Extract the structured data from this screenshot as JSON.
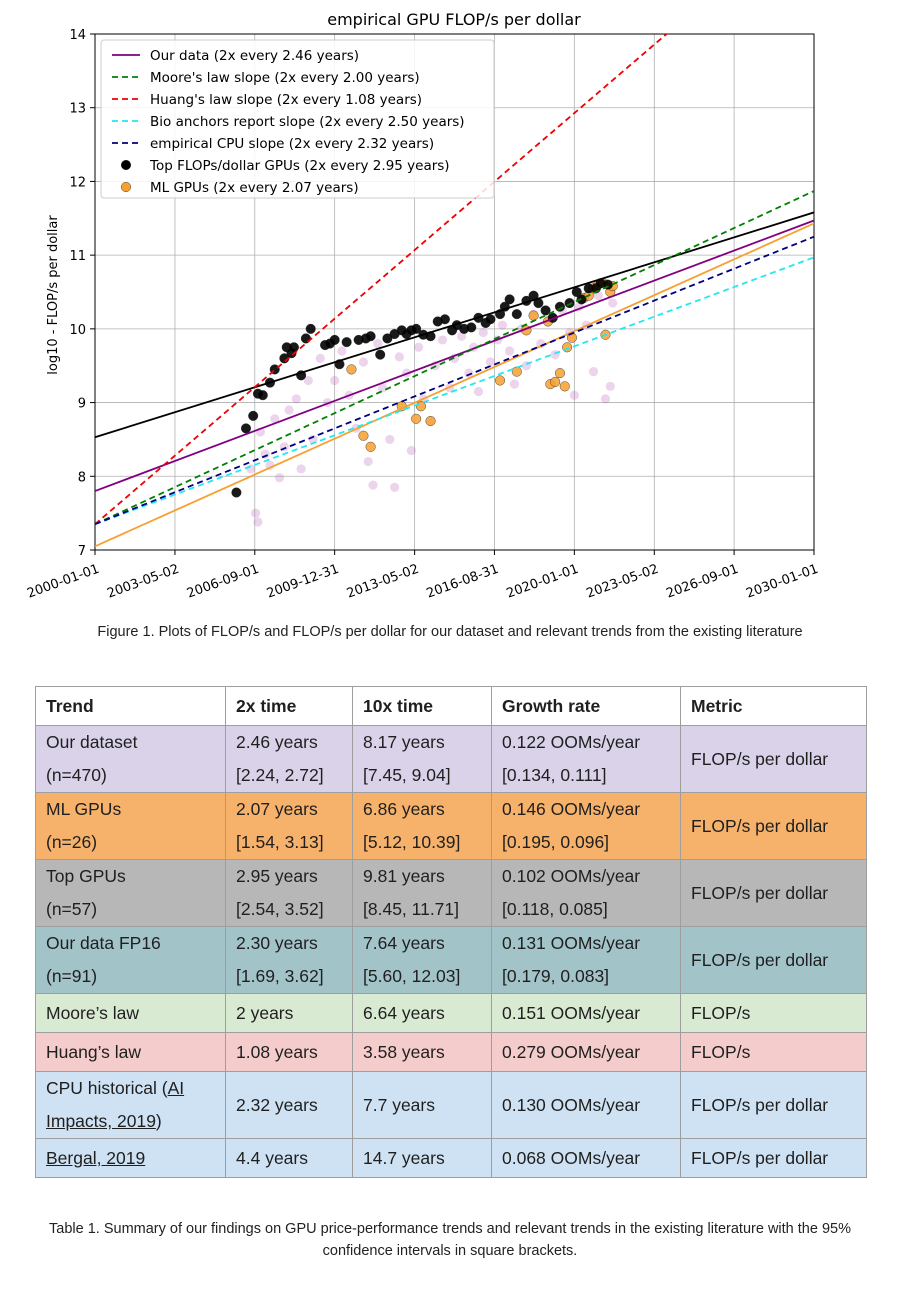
{
  "chart_data": {
    "type": "scatter",
    "title": "empirical GPU FLOP/s per dollar",
    "ylabel": "log10 - FLOP/s per dollar",
    "xlabel": "",
    "xlim": [
      "2000-01-01",
      "2030-01-01"
    ],
    "ylim": [
      7,
      14
    ],
    "grid": true,
    "legend_position": "top-left",
    "x_ticks": [
      "2000-01-01",
      "2003-05-02",
      "2006-09-01",
      "2009-12-31",
      "2013-05-02",
      "2016-08-31",
      "2020-01-01",
      "2023-05-02",
      "2026-09-01",
      "2030-01-01"
    ],
    "y_ticks": [
      7,
      8,
      9,
      10,
      11,
      12,
      13,
      14
    ],
    "trend_lines": [
      {
        "name": "Our data (2x every 2.46 years)",
        "color": "#800080",
        "dash": "solid",
        "x": [
          "2000-01-01",
          "2030-01-01"
        ],
        "y": [
          7.8,
          11.47
        ]
      },
      {
        "name": "Moore's law slope (2x every 2.00 years)",
        "color": "#008000",
        "dash": "dashed",
        "x": [
          "2000-01-01",
          "2030-01-01"
        ],
        "y": [
          7.35,
          11.87
        ]
      },
      {
        "name": "Huang's law slope (2x every 1.08 years)",
        "color": "#ee0000",
        "dash": "dashed",
        "x": [
          "2000-01-01",
          "2026-01-01"
        ],
        "y": [
          7.35,
          14.6
        ]
      },
      {
        "name": "Bio anchors report slope (2x every 2.50 years)",
        "color": "#22e8f0",
        "dash": "dashed",
        "x": [
          "2000-01-01",
          "2030-01-01"
        ],
        "y": [
          7.35,
          10.97
        ]
      },
      {
        "name": "empirical CPU slope (2x every 2.32 years)",
        "color": "#000080",
        "dash": "dashed",
        "x": [
          "2000-01-01",
          "2030-01-01"
        ],
        "y": [
          7.35,
          11.25
        ]
      }
    ],
    "extra_lines": [
      {
        "color": "#000000",
        "dash": "solid",
        "x": [
          "2000-01-01",
          "2030-01-01"
        ],
        "y": [
          8.53,
          11.58
        ]
      },
      {
        "color": "#f7a030",
        "dash": "solid",
        "x": [
          "2000-01-01",
          "2030-01-01"
        ],
        "y": [
          7.05,
          11.43
        ]
      }
    ],
    "series": [
      {
        "name": "Top FLOPs/dollar GPUs (2x every 2.95 years)",
        "color": "#000000",
        "points": [
          [
            2005.9,
            7.78
          ],
          [
            2006.3,
            8.65
          ],
          [
            2006.6,
            8.82
          ],
          [
            2006.8,
            9.12
          ],
          [
            2007.0,
            9.1
          ],
          [
            2007.3,
            9.27
          ],
          [
            2007.5,
            9.45
          ],
          [
            2007.9,
            9.6
          ],
          [
            2008.0,
            9.75
          ],
          [
            2008.2,
            9.67
          ],
          [
            2008.3,
            9.75
          ],
          [
            2008.6,
            9.37
          ],
          [
            2008.8,
            9.87
          ],
          [
            2009.0,
            10.0
          ],
          [
            2009.6,
            9.78
          ],
          [
            2009.8,
            9.8
          ],
          [
            2010.0,
            9.85
          ],
          [
            2010.2,
            9.52
          ],
          [
            2010.5,
            9.82
          ],
          [
            2011.0,
            9.85
          ],
          [
            2011.3,
            9.87
          ],
          [
            2011.5,
            9.9
          ],
          [
            2011.9,
            9.65
          ],
          [
            2012.2,
            9.87
          ],
          [
            2012.5,
            9.93
          ],
          [
            2012.8,
            9.98
          ],
          [
            2013.0,
            9.93
          ],
          [
            2013.2,
            9.98
          ],
          [
            2013.4,
            10.0
          ],
          [
            2013.7,
            9.92
          ],
          [
            2014.0,
            9.9
          ],
          [
            2014.3,
            10.1
          ],
          [
            2014.6,
            10.13
          ],
          [
            2014.9,
            9.98
          ],
          [
            2015.1,
            10.05
          ],
          [
            2015.4,
            10.0
          ],
          [
            2015.7,
            10.02
          ],
          [
            2016.0,
            10.15
          ],
          [
            2016.3,
            10.08
          ],
          [
            2016.5,
            10.13
          ],
          [
            2016.9,
            10.2
          ],
          [
            2017.1,
            10.3
          ],
          [
            2017.3,
            10.4
          ],
          [
            2017.6,
            10.2
          ],
          [
            2018.0,
            10.38
          ],
          [
            2018.3,
            10.45
          ],
          [
            2018.5,
            10.35
          ],
          [
            2018.8,
            10.25
          ],
          [
            2019.1,
            10.15
          ],
          [
            2019.4,
            10.3
          ],
          [
            2019.8,
            10.35
          ],
          [
            2020.1,
            10.5
          ],
          [
            2020.3,
            10.4
          ],
          [
            2020.6,
            10.55
          ],
          [
            2020.9,
            10.55
          ],
          [
            2021.1,
            10.62
          ],
          [
            2021.4,
            10.6
          ]
        ]
      },
      {
        "name": "ML GPUs (2x every 2.07 years)",
        "color": "#f7a030",
        "points": [
          [
            2010.7,
            9.45
          ],
          [
            2011.2,
            8.55
          ],
          [
            2011.5,
            8.4
          ],
          [
            2012.8,
            8.95
          ],
          [
            2013.4,
            8.78
          ],
          [
            2013.6,
            8.95
          ],
          [
            2014.0,
            8.75
          ],
          [
            2016.9,
            9.3
          ],
          [
            2017.6,
            9.42
          ],
          [
            2018.0,
            9.98
          ],
          [
            2018.3,
            10.18
          ],
          [
            2018.9,
            10.1
          ],
          [
            2019.0,
            9.25
          ],
          [
            2019.2,
            9.28
          ],
          [
            2019.4,
            9.4
          ],
          [
            2019.6,
            9.22
          ],
          [
            2019.7,
            9.75
          ],
          [
            2019.9,
            9.88
          ],
          [
            2020.4,
            10.42
          ],
          [
            2020.6,
            10.45
          ],
          [
            2020.8,
            10.55
          ],
          [
            2021.0,
            10.6
          ],
          [
            2021.2,
            10.62
          ],
          [
            2021.3,
            9.92
          ],
          [
            2021.5,
            10.5
          ],
          [
            2021.6,
            10.58
          ]
        ]
      },
      {
        "name": "Our data (all GPUs, faint)",
        "color": "#c064c0",
        "points": [
          [
            2006.5,
            8.1
          ],
          [
            2006.7,
            7.5
          ],
          [
            2006.8,
            7.38
          ],
          [
            2006.9,
            8.6
          ],
          [
            2007.1,
            8.3
          ],
          [
            2007.3,
            8.15
          ],
          [
            2007.5,
            8.78
          ],
          [
            2007.7,
            7.98
          ],
          [
            2007.9,
            8.4
          ],
          [
            2008.1,
            8.9
          ],
          [
            2008.4,
            9.05
          ],
          [
            2008.6,
            8.1
          ],
          [
            2008.9,
            9.3
          ],
          [
            2009.1,
            8.5
          ],
          [
            2009.4,
            9.6
          ],
          [
            2009.7,
            9.0
          ],
          [
            2010.0,
            9.3
          ],
          [
            2010.3,
            9.7
          ],
          [
            2010.6,
            9.1
          ],
          [
            2010.9,
            8.65
          ],
          [
            2011.2,
            9.55
          ],
          [
            2011.4,
            8.2
          ],
          [
            2011.6,
            7.88
          ],
          [
            2011.8,
            9.8
          ],
          [
            2012.0,
            9.2
          ],
          [
            2012.3,
            8.5
          ],
          [
            2012.5,
            7.85
          ],
          [
            2012.7,
            9.62
          ],
          [
            2013.0,
            9.4
          ],
          [
            2013.2,
            8.35
          ],
          [
            2013.5,
            9.75
          ],
          [
            2013.7,
            9.05
          ],
          [
            2014.0,
            8.75
          ],
          [
            2014.2,
            9.5
          ],
          [
            2014.5,
            9.85
          ],
          [
            2014.8,
            9.2
          ],
          [
            2015.0,
            9.6
          ],
          [
            2015.3,
            9.9
          ],
          [
            2015.6,
            9.4
          ],
          [
            2015.8,
            9.75
          ],
          [
            2016.0,
            9.15
          ],
          [
            2016.2,
            9.95
          ],
          [
            2016.5,
            9.55
          ],
          [
            2016.8,
            9.85
          ],
          [
            2017.0,
            10.05
          ],
          [
            2017.3,
            9.7
          ],
          [
            2017.5,
            9.25
          ],
          [
            2017.8,
            10.0
          ],
          [
            2018.0,
            9.5
          ],
          [
            2018.3,
            10.2
          ],
          [
            2018.6,
            9.8
          ],
          [
            2018.9,
            10.1
          ],
          [
            2019.2,
            9.65
          ],
          [
            2019.5,
            10.25
          ],
          [
            2019.8,
            9.95
          ],
          [
            2020.0,
            9.1
          ],
          [
            2020.2,
            10.3
          ],
          [
            2020.5,
            10.05
          ],
          [
            2020.8,
            9.42
          ],
          [
            2021.0,
            10.45
          ],
          [
            2021.3,
            9.05
          ],
          [
            2021.5,
            9.22
          ],
          [
            2021.6,
            10.35
          ]
        ]
      }
    ],
    "legend": [
      {
        "label": "Our data (2x every 2.46 years)",
        "kind": "line",
        "color": "#800080",
        "dash": "solid"
      },
      {
        "label": "Moore's law slope (2x every 2.00 years)",
        "kind": "line",
        "color": "#008000",
        "dash": "dashed"
      },
      {
        "label": "Huang's law slope (2x every 1.08 years)",
        "kind": "line",
        "color": "#ee0000",
        "dash": "dashed"
      },
      {
        "label": "Bio anchors report slope (2x every 2.50 years)",
        "kind": "line",
        "color": "#22e8f0",
        "dash": "dashed"
      },
      {
        "label": "empirical CPU slope (2x every 2.32 years)",
        "kind": "line",
        "color": "#000080",
        "dash": "dashed"
      },
      {
        "label": "Top FLOPs/dollar GPUs (2x every 2.95 years)",
        "kind": "dot",
        "color": "#000000"
      },
      {
        "label": "ML GPUs (2x every 2.07 years)",
        "kind": "dot",
        "color": "#f7a030"
      }
    ]
  },
  "figure_caption": "Figure 1. Plots of FLOP/s and FLOP/s per dollar for our dataset and relevant trends from the existing literature",
  "table": {
    "headers": [
      "Trend",
      "2x time",
      "10x time",
      "Growth rate",
      "Metric"
    ],
    "rows": [
      {
        "color": "#d9d2e9",
        "trend": [
          "Our dataset",
          "(n=470)"
        ],
        "x2": [
          "2.46 years",
          "[2.24, 2.72]"
        ],
        "x10": [
          "8.17 years",
          "[7.45, 9.04]"
        ],
        "growth": [
          "0.122 OOMs/year",
          "[0.134, 0.111]"
        ],
        "metric": "FLOP/s per dollar"
      },
      {
        "color": "#f6b26b",
        "trend": [
          "ML GPUs",
          "(n=26)"
        ],
        "x2": [
          "2.07 years",
          "[1.54, 3.13]"
        ],
        "x10": [
          "6.86 years",
          "[5.12, 10.39]"
        ],
        "growth": [
          "0.146 OOMs/year",
          "[0.195, 0.096]"
        ],
        "metric": "FLOP/s per dollar"
      },
      {
        "color": "#b7b7b7",
        "trend": [
          "Top GPUs",
          "(n=57)"
        ],
        "x2": [
          "2.95 years",
          "[2.54, 3.52]"
        ],
        "x10": [
          "9.81 years",
          "[8.45, 11.71]"
        ],
        "growth": [
          "0.102 OOMs/year",
          "[0.118, 0.085]"
        ],
        "metric": "FLOP/s per dollar"
      },
      {
        "color": "#a2c4c9",
        "trend": [
          "Our data FP16",
          "(n=91)"
        ],
        "x2": [
          "2.30 years",
          "[1.69, 3.62]"
        ],
        "x10": [
          "7.64 years",
          "[5.60, 12.03]"
        ],
        "growth": [
          "0.131 OOMs/year",
          "[0.179, 0.083]"
        ],
        "metric": "FLOP/s per dollar"
      },
      {
        "color": "#d9ead3",
        "trend": [
          "Moore’s law"
        ],
        "x2": [
          "2 years"
        ],
        "x10": [
          "6.64 years"
        ],
        "growth": [
          "0.151 OOMs/year"
        ],
        "metric": "FLOP/s"
      },
      {
        "color": "#f4cccc",
        "trend": [
          "Huang’s law"
        ],
        "x2": [
          "1.08 years"
        ],
        "x10": [
          "3.58 years"
        ],
        "growth": [
          "0.279 OOMs/year"
        ],
        "metric": "FLOP/s"
      },
      {
        "color": "#cfe2f3",
        "trend_prefix": "CPU historical (",
        "trend_link": "AI Impacts, 2019",
        "trend_suffix": ")",
        "x2": [
          "2.32 years"
        ],
        "x10": [
          "7.7 years"
        ],
        "growth": [
          "0.130 OOMs/year"
        ],
        "metric": "FLOP/s per dollar"
      },
      {
        "color": "#cfe2f3",
        "trend_link_only": "Bergal, 2019",
        "x2": [
          "4.4 years"
        ],
        "x10": [
          "14.7 years"
        ],
        "growth": [
          "0.068 OOMs/year"
        ],
        "metric": "FLOP/s per dollar"
      }
    ]
  },
  "table_caption": "Table 1. Summary of our findings on GPU price-performance trends and relevant trends in the existing literature with the 95% confidence intervals in square brackets."
}
